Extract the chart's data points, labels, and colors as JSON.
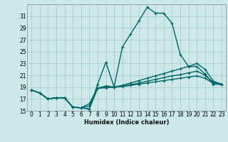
{
  "xlabel": "Humidex (Indice chaleur)",
  "bg_color": "#cce8e8",
  "grid_color": "#aacccc",
  "line_color": "#006666",
  "xlim": [
    -0.5,
    23.5
  ],
  "ylim": [
    15,
    33
  ],
  "xticks": [
    0,
    1,
    2,
    3,
    4,
    5,
    6,
    7,
    8,
    9,
    10,
    11,
    12,
    13,
    14,
    15,
    16,
    17,
    18,
    19,
    20,
    21,
    22,
    23
  ],
  "yticks": [
    15,
    17,
    19,
    21,
    23,
    25,
    27,
    29,
    31
  ],
  "series": [
    [
      18.5,
      18.0,
      17.0,
      17.2,
      17.2,
      15.6,
      15.5,
      15.3,
      19.5,
      23.2,
      19.0,
      25.8,
      28.0,
      30.2,
      32.5,
      31.5,
      31.5,
      29.8,
      24.5,
      22.5,
      22.5,
      21.2,
      19.5,
      19.5
    ],
    [
      18.5,
      18.0,
      17.0,
      17.2,
      17.2,
      15.6,
      15.5,
      15.3,
      18.8,
      19.2,
      19.0,
      19.3,
      19.7,
      20.1,
      20.5,
      20.9,
      21.3,
      21.7,
      22.1,
      22.5,
      23.0,
      22.0,
      20.0,
      19.5
    ],
    [
      18.5,
      18.0,
      17.0,
      17.2,
      17.2,
      15.6,
      15.5,
      15.8,
      18.8,
      19.0,
      19.0,
      19.2,
      19.4,
      19.7,
      20.0,
      20.3,
      20.6,
      20.9,
      21.1,
      21.4,
      21.7,
      21.0,
      19.8,
      19.5
    ],
    [
      18.5,
      18.0,
      17.0,
      17.2,
      17.2,
      15.6,
      15.5,
      16.2,
      18.8,
      18.9,
      19.0,
      19.1,
      19.3,
      19.5,
      19.7,
      19.9,
      20.1,
      20.3,
      20.5,
      20.7,
      20.9,
      20.5,
      19.6,
      19.4
    ]
  ]
}
